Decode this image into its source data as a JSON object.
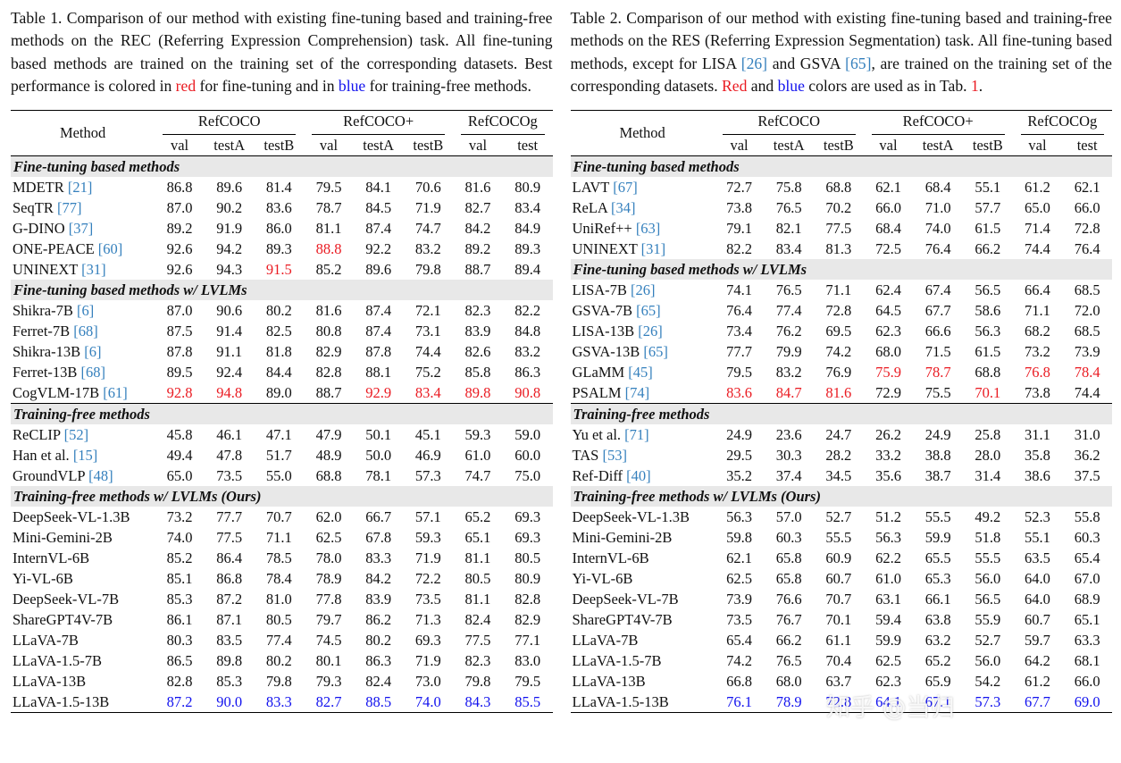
{
  "watermark": "知乎 @当归",
  "colors": {
    "best_finetuning": "#ea1b22",
    "best_training_free": "#1212ee",
    "citation": "#3580bd",
    "section_background": "#e8e8e8"
  },
  "column_headers": {
    "method": "Method",
    "groups": [
      {
        "label": "RefCOCO",
        "cols": [
          "val",
          "testA",
          "testB"
        ]
      },
      {
        "label": "RefCOCO+",
        "cols": [
          "val",
          "testA",
          "testB"
        ]
      },
      {
        "label": "RefCOCOg",
        "cols": [
          "val",
          "test"
        ]
      }
    ]
  },
  "table1": {
    "caption": [
      {
        "text": "Table 1. Comparison of our method with existing fine-tuning based and training-free methods on the REC (Referring Expression Comprehension) task. All fine-tuning based methods are trained on the training set of the corresponding datasets. Best performance is colored in ",
        "style": ""
      },
      {
        "text": "red",
        "style": "red"
      },
      {
        "text": " for fine-tuning and in ",
        "style": ""
      },
      {
        "text": "blue",
        "style": "blue"
      },
      {
        "text": " for training-free methods.",
        "style": ""
      }
    ],
    "sections": [
      {
        "title": "Fine-tuning based methods",
        "rule_before": false,
        "rows": [
          {
            "method": "MDETR",
            "cite": "[21]",
            "values": [
              "86.8",
              "89.6",
              "81.4",
              "79.5",
              "84.1",
              "70.6",
              "81.6",
              "80.9"
            ]
          },
          {
            "method": "SeqTR",
            "cite": "[77]",
            "values": [
              "87.0",
              "90.2",
              "83.6",
              "78.7",
              "84.5",
              "71.9",
              "82.7",
              "83.4"
            ]
          },
          {
            "method": "G-DINO",
            "cite": "[37]",
            "values": [
              "89.2",
              "91.9",
              "86.0",
              "81.1",
              "87.4",
              "74.7",
              "84.2",
              "84.9"
            ]
          },
          {
            "method": "ONE-PEACE",
            "cite": "[60]",
            "values": [
              "92.6",
              "94.2",
              "89.3",
              "88.8",
              "92.2",
              "83.2",
              "89.2",
              "89.3"
            ],
            "hl": {
              "3": "r"
            }
          },
          {
            "method": "UNINEXT",
            "cite": "[31]",
            "values": [
              "92.6",
              "94.3",
              "91.5",
              "85.2",
              "89.6",
              "79.8",
              "88.7",
              "89.4"
            ],
            "hl": {
              "2": "r"
            }
          }
        ]
      },
      {
        "title": "Fine-tuning based methods w/ LVLMs",
        "rule_before": false,
        "rows": [
          {
            "method": "Shikra-7B",
            "cite": "[6]",
            "values": [
              "87.0",
              "90.6",
              "80.2",
              "81.6",
              "87.4",
              "72.1",
              "82.3",
              "82.2"
            ]
          },
          {
            "method": "Ferret-7B",
            "cite": "[68]",
            "values": [
              "87.5",
              "91.4",
              "82.5",
              "80.8",
              "87.4",
              "73.1",
              "83.9",
              "84.8"
            ]
          },
          {
            "method": "Shikra-13B",
            "cite": "[6]",
            "values": [
              "87.8",
              "91.1",
              "81.8",
              "82.9",
              "87.8",
              "74.4",
              "82.6",
              "83.2"
            ]
          },
          {
            "method": "Ferret-13B",
            "cite": "[68]",
            "values": [
              "89.5",
              "92.4",
              "84.4",
              "82.8",
              "88.1",
              "75.2",
              "85.8",
              "86.3"
            ]
          },
          {
            "method": "CogVLM-17B",
            "cite": "[61]",
            "values": [
              "92.8",
              "94.8",
              "89.0",
              "88.7",
              "92.9",
              "83.4",
              "89.8",
              "90.8"
            ],
            "hl": {
              "0": "r",
              "1": "r",
              "4": "r",
              "5": "r",
              "6": "r",
              "7": "r"
            }
          }
        ]
      },
      {
        "title": "Training-free methods",
        "rule_before": true,
        "rows": [
          {
            "method": "ReCLIP",
            "cite": "[52]",
            "values": [
              "45.8",
              "46.1",
              "47.1",
              "47.9",
              "50.1",
              "45.1",
              "59.3",
              "59.0"
            ]
          },
          {
            "method": "Han et al.",
            "cite": "[15]",
            "values": [
              "49.4",
              "47.8",
              "51.7",
              "48.9",
              "50.0",
              "46.9",
              "61.0",
              "60.0"
            ]
          },
          {
            "method": "GroundVLP",
            "cite": "[48]",
            "values": [
              "65.0",
              "73.5",
              "55.0",
              "68.8",
              "78.1",
              "57.3",
              "74.7",
              "75.0"
            ]
          }
        ]
      },
      {
        "title": "Training-free methods w/ LVLMs (Ours)",
        "rule_before": false,
        "rows": [
          {
            "method": "DeepSeek-VL-1.3B",
            "cite": "",
            "values": [
              "73.2",
              "77.7",
              "70.7",
              "62.0",
              "66.7",
              "57.1",
              "65.2",
              "69.3"
            ]
          },
          {
            "method": "Mini-Gemini-2B",
            "cite": "",
            "values": [
              "74.0",
              "77.5",
              "71.1",
              "62.5",
              "67.8",
              "59.3",
              "65.1",
              "69.3"
            ]
          },
          {
            "method": "InternVL-6B",
            "cite": "",
            "values": [
              "85.2",
              "86.4",
              "78.5",
              "78.0",
              "83.3",
              "71.9",
              "81.1",
              "80.5"
            ]
          },
          {
            "method": "Yi-VL-6B",
            "cite": "",
            "values": [
              "85.1",
              "86.8",
              "78.4",
              "78.9",
              "84.2",
              "72.2",
              "80.5",
              "80.9"
            ]
          },
          {
            "method": "DeepSeek-VL-7B",
            "cite": "",
            "values": [
              "85.3",
              "87.2",
              "81.0",
              "77.8",
              "83.9",
              "73.5",
              "81.1",
              "82.8"
            ]
          },
          {
            "method": "ShareGPT4V-7B",
            "cite": "",
            "values": [
              "86.1",
              "87.1",
              "80.5",
              "79.7",
              "86.2",
              "71.3",
              "82.4",
              "82.9"
            ]
          },
          {
            "method": "LLaVA-7B",
            "cite": "",
            "values": [
              "80.3",
              "83.5",
              "77.4",
              "74.5",
              "80.2",
              "69.3",
              "77.5",
              "77.1"
            ]
          },
          {
            "method": "LLaVA-1.5-7B",
            "cite": "",
            "values": [
              "86.5",
              "89.8",
              "80.2",
              "80.1",
              "86.3",
              "71.9",
              "82.3",
              "83.0"
            ]
          },
          {
            "method": "LLaVA-13B",
            "cite": "",
            "values": [
              "82.8",
              "85.3",
              "79.8",
              "79.3",
              "82.4",
              "73.0",
              "79.8",
              "79.5"
            ]
          },
          {
            "method": "LLaVA-1.5-13B",
            "cite": "",
            "values": [
              "87.2",
              "90.0",
              "83.3",
              "82.7",
              "88.5",
              "74.0",
              "84.3",
              "85.5"
            ],
            "hl": {
              "0": "b",
              "1": "b",
              "2": "b",
              "3": "b",
              "4": "b",
              "5": "b",
              "6": "b",
              "7": "b"
            }
          }
        ]
      }
    ]
  },
  "table2": {
    "caption": [
      {
        "text": "Table 2. Comparison of our method with existing fine-tuning based and training-free methods on the RES (Referring Expression Segmentation) task. All fine-tuning based methods, except for LISA ",
        "style": ""
      },
      {
        "text": "[26]",
        "style": "cite"
      },
      {
        "text": " and GSVA ",
        "style": ""
      },
      {
        "text": "[65]",
        "style": "cite"
      },
      {
        "text": ", are trained on the training set of the corresponding datasets. ",
        "style": ""
      },
      {
        "text": "Red",
        "style": "red"
      },
      {
        "text": " and ",
        "style": ""
      },
      {
        "text": "blue",
        "style": "blue"
      },
      {
        "text": " colors are used as in Tab. ",
        "style": ""
      },
      {
        "text": "1",
        "style": "link"
      },
      {
        "text": ".",
        "style": ""
      }
    ],
    "sections": [
      {
        "title": "Fine-tuning based methods",
        "rule_before": false,
        "rows": [
          {
            "method": "LAVT",
            "cite": "[67]",
            "values": [
              "72.7",
              "75.8",
              "68.8",
              "62.1",
              "68.4",
              "55.1",
              "61.2",
              "62.1"
            ]
          },
          {
            "method": "ReLA",
            "cite": "[34]",
            "values": [
              "73.8",
              "76.5",
              "70.2",
              "66.0",
              "71.0",
              "57.7",
              "65.0",
              "66.0"
            ]
          },
          {
            "method": "UniRef++",
            "cite": "[63]",
            "values": [
              "79.1",
              "82.1",
              "77.5",
              "68.4",
              "74.0",
              "61.5",
              "71.4",
              "72.8"
            ]
          },
          {
            "method": "UNINEXT",
            "cite": "[31]",
            "values": [
              "82.2",
              "83.4",
              "81.3",
              "72.5",
              "76.4",
              "66.2",
              "74.4",
              "76.4"
            ]
          }
        ]
      },
      {
        "title": "Fine-tuning based methods w/ LVLMs",
        "rule_before": false,
        "rows": [
          {
            "method": "LISA-7B",
            "cite": "[26]",
            "values": [
              "74.1",
              "76.5",
              "71.1",
              "62.4",
              "67.4",
              "56.5",
              "66.4",
              "68.5"
            ]
          },
          {
            "method": "GSVA-7B",
            "cite": "[65]",
            "values": [
              "76.4",
              "77.4",
              "72.8",
              "64.5",
              "67.7",
              "58.6",
              "71.1",
              "72.0"
            ]
          },
          {
            "method": "LISA-13B",
            "cite": "[26]",
            "values": [
              "73.4",
              "76.2",
              "69.5",
              "62.3",
              "66.6",
              "56.3",
              "68.2",
              "68.5"
            ]
          },
          {
            "method": "GSVA-13B",
            "cite": "[65]",
            "values": [
              "77.7",
              "79.9",
              "74.2",
              "68.0",
              "71.5",
              "61.5",
              "73.2",
              "73.9"
            ]
          },
          {
            "method": "GLaMM",
            "cite": "[45]",
            "values": [
              "79.5",
              "83.2",
              "76.9",
              "75.9",
              "78.7",
              "68.8",
              "76.8",
              "78.4"
            ],
            "hl": {
              "3": "r",
              "4": "r",
              "6": "r",
              "7": "r"
            }
          },
          {
            "method": "PSALM",
            "cite": "[74]",
            "values": [
              "83.6",
              "84.7",
              "81.6",
              "72.9",
              "75.5",
              "70.1",
              "73.8",
              "74.4"
            ],
            "hl": {
              "0": "r",
              "1": "r",
              "2": "r",
              "5": "r"
            }
          }
        ]
      },
      {
        "title": "Training-free methods",
        "rule_before": true,
        "rows": [
          {
            "method": "Yu et al.",
            "cite": "[71]",
            "values": [
              "24.9",
              "23.6",
              "24.7",
              "26.2",
              "24.9",
              "25.8",
              "31.1",
              "31.0"
            ]
          },
          {
            "method": "TAS",
            "cite": "[53]",
            "values": [
              "29.5",
              "30.3",
              "28.2",
              "33.2",
              "38.8",
              "28.0",
              "35.8",
              "36.2"
            ]
          },
          {
            "method": "Ref-Diff",
            "cite": "[40]",
            "values": [
              "35.2",
              "37.4",
              "34.5",
              "35.6",
              "38.7",
              "31.4",
              "38.6",
              "37.5"
            ]
          }
        ]
      },
      {
        "title": "Training-free methods w/ LVLMs (Ours)",
        "rule_before": false,
        "rows": [
          {
            "method": "DeepSeek-VL-1.3B",
            "cite": "",
            "values": [
              "56.3",
              "57.0",
              "52.7",
              "51.2",
              "55.5",
              "49.2",
              "52.3",
              "55.8"
            ]
          },
          {
            "method": "Mini-Gemini-2B",
            "cite": "",
            "values": [
              "59.8",
              "60.3",
              "55.5",
              "56.3",
              "59.9",
              "51.8",
              "55.1",
              "60.3"
            ]
          },
          {
            "method": "InternVL-6B",
            "cite": "",
            "values": [
              "62.1",
              "65.8",
              "60.9",
              "62.2",
              "65.5",
              "55.5",
              "63.5",
              "65.4"
            ]
          },
          {
            "method": "Yi-VL-6B",
            "cite": "",
            "values": [
              "62.5",
              "65.8",
              "60.7",
              "61.0",
              "65.3",
              "56.0",
              "64.0",
              "67.0"
            ]
          },
          {
            "method": "DeepSeek-VL-7B",
            "cite": "",
            "values": [
              "73.9",
              "76.6",
              "70.7",
              "63.1",
              "66.1",
              "56.5",
              "64.0",
              "68.9"
            ]
          },
          {
            "method": "ShareGPT4V-7B",
            "cite": "",
            "values": [
              "73.5",
              "76.7",
              "70.1",
              "59.4",
              "63.8",
              "55.9",
              "60.7",
              "65.1"
            ]
          },
          {
            "method": "LLaVA-7B",
            "cite": "",
            "values": [
              "65.4",
              "66.2",
              "61.1",
              "59.9",
              "63.2",
              "52.7",
              "59.7",
              "63.3"
            ]
          },
          {
            "method": "LLaVA-1.5-7B",
            "cite": "",
            "values": [
              "74.2",
              "76.5",
              "70.4",
              "62.5",
              "65.2",
              "56.0",
              "64.2",
              "68.1"
            ]
          },
          {
            "method": "LLaVA-13B",
            "cite": "",
            "values": [
              "66.8",
              "68.0",
              "63.7",
              "62.3",
              "65.9",
              "54.2",
              "61.2",
              "66.0"
            ]
          },
          {
            "method": "LLaVA-1.5-13B",
            "cite": "",
            "values": [
              "76.1",
              "78.9",
              "72.8",
              "64.1",
              "67.1",
              "57.3",
              "67.7",
              "69.0"
            ],
            "hl": {
              "0": "b",
              "1": "b",
              "2": "b",
              "3": "b",
              "4": "b",
              "5": "b",
              "6": "b",
              "7": "b"
            }
          }
        ]
      }
    ]
  }
}
